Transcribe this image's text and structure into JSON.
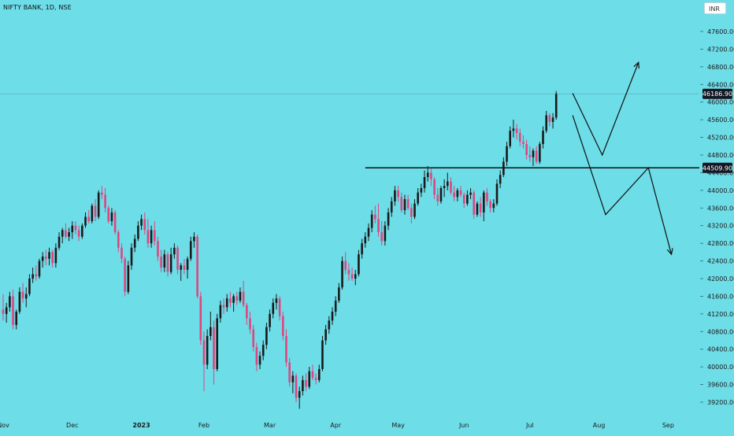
{
  "header": {
    "symbol_title": "NIFTY BANK, 1D, NSE",
    "currency": "INR"
  },
  "colors": {
    "background": "#6ddde8",
    "up": "#1a1a1a",
    "down": "#e0457f",
    "line": "#111111",
    "price_tag_bg": "#131722"
  },
  "chart_data": {
    "type": "candlestick",
    "title": "NIFTY BANK, 1D, NSE",
    "ylim": [
      39000,
      47800
    ],
    "y_ticks": [
      "39200.00",
      "39600.00",
      "40000.00",
      "40400.00",
      "40800.00",
      "41200.00",
      "41600.00",
      "42000.00",
      "42400.00",
      "42800.00",
      "43200.00",
      "43600.00",
      "44000.00",
      "44400.00",
      "44800.00",
      "45200.00",
      "45600.00",
      "46000.00",
      "46400.00",
      "46800.00",
      "47200.00",
      "47600.00"
    ],
    "y_tick_values": [
      39200,
      39600,
      40000,
      40400,
      40800,
      41200,
      41600,
      42000,
      42400,
      42800,
      43200,
      43600,
      44000,
      44400,
      44800,
      45200,
      45600,
      46000,
      46400,
      46800,
      47200,
      47600
    ],
    "x_labels": [
      "Nov",
      "Dec",
      "2023",
      "Feb",
      "Mar",
      "Apr",
      "May",
      "Jun",
      "Jul",
      "Aug",
      "Sep"
    ],
    "x_label_index": [
      0,
      21,
      42,
      61,
      81,
      101,
      120,
      140,
      160,
      181,
      202
    ],
    "grid": false,
    "price_labels": [
      {
        "text": "46186.90",
        "value": 46186.9
      },
      {
        "text": "44509.90",
        "value": 44509.9
      }
    ],
    "support_line": {
      "value": 44509.9,
      "from_index": 110,
      "to_index": 215
    },
    "projection_paths": [
      [
        [
          173,
          46200
        ],
        [
          182,
          44800
        ],
        [
          193,
          46900
        ]
      ],
      [
        [
          173,
          45700
        ],
        [
          183,
          43450
        ],
        [
          196,
          44510
        ],
        [
          203,
          42550
        ]
      ]
    ],
    "candles": [
      {
        "o": 41300,
        "h": 41650,
        "l": 41050,
        "c": 41200
      },
      {
        "o": 41200,
        "h": 41450,
        "l": 41000,
        "c": 41350
      },
      {
        "o": 41350,
        "h": 41700,
        "l": 41250,
        "c": 41600
      },
      {
        "o": 41600,
        "h": 41750,
        "l": 40850,
        "c": 40950
      },
      {
        "o": 40950,
        "h": 41300,
        "l": 40850,
        "c": 41250
      },
      {
        "o": 41250,
        "h": 41800,
        "l": 41200,
        "c": 41700
      },
      {
        "o": 41700,
        "h": 41900,
        "l": 41450,
        "c": 41550
      },
      {
        "o": 41550,
        "h": 41800,
        "l": 41350,
        "c": 41650
      },
      {
        "o": 41650,
        "h": 42100,
        "l": 41600,
        "c": 42000
      },
      {
        "o": 42000,
        "h": 42250,
        "l": 41900,
        "c": 42100
      },
      {
        "o": 42100,
        "h": 42300,
        "l": 41950,
        "c": 42050
      },
      {
        "o": 42050,
        "h": 42450,
        "l": 42000,
        "c": 42400
      },
      {
        "o": 42400,
        "h": 42600,
        "l": 42250,
        "c": 42500
      },
      {
        "o": 42500,
        "h": 42650,
        "l": 42300,
        "c": 42450
      },
      {
        "o": 42450,
        "h": 42700,
        "l": 42300,
        "c": 42600
      },
      {
        "o": 42600,
        "h": 42650,
        "l": 42250,
        "c": 42350
      },
      {
        "o": 42350,
        "h": 42800,
        "l": 42250,
        "c": 42700
      },
      {
        "o": 42700,
        "h": 43050,
        "l": 42650,
        "c": 42950
      },
      {
        "o": 42950,
        "h": 43150,
        "l": 42800,
        "c": 43100
      },
      {
        "o": 43100,
        "h": 43250,
        "l": 42900,
        "c": 42950
      },
      {
        "o": 42950,
        "h": 43150,
        "l": 42850,
        "c": 43050
      },
      {
        "o": 43050,
        "h": 43300,
        "l": 42900,
        "c": 43200
      },
      {
        "o": 43200,
        "h": 43300,
        "l": 43000,
        "c": 43100
      },
      {
        "o": 43100,
        "h": 43200,
        "l": 42850,
        "c": 42950
      },
      {
        "o": 42950,
        "h": 43250,
        "l": 42900,
        "c": 43200
      },
      {
        "o": 43200,
        "h": 43500,
        "l": 43150,
        "c": 43400
      },
      {
        "o": 43400,
        "h": 43550,
        "l": 43250,
        "c": 43300
      },
      {
        "o": 43300,
        "h": 43700,
        "l": 43250,
        "c": 43650
      },
      {
        "o": 43650,
        "h": 43800,
        "l": 43300,
        "c": 43400
      },
      {
        "o": 43400,
        "h": 44000,
        "l": 43350,
        "c": 43950
      },
      {
        "o": 43950,
        "h": 44100,
        "l": 43800,
        "c": 43900
      },
      {
        "o": 43900,
        "h": 44050,
        "l": 43500,
        "c": 43600
      },
      {
        "o": 43600,
        "h": 43650,
        "l": 43250,
        "c": 43300
      },
      {
        "o": 43300,
        "h": 43600,
        "l": 43200,
        "c": 43500
      },
      {
        "o": 43500,
        "h": 43550,
        "l": 43000,
        "c": 43050
      },
      {
        "o": 43050,
        "h": 43100,
        "l": 42600,
        "c": 42700
      },
      {
        "o": 42700,
        "h": 42800,
        "l": 42350,
        "c": 42450
      },
      {
        "o": 42450,
        "h": 42500,
        "l": 41600,
        "c": 41700
      },
      {
        "o": 41700,
        "h": 42400,
        "l": 41650,
        "c": 42300
      },
      {
        "o": 42300,
        "h": 42800,
        "l": 42200,
        "c": 42700
      },
      {
        "o": 42700,
        "h": 43000,
        "l": 42600,
        "c": 42900
      },
      {
        "o": 42900,
        "h": 43300,
        "l": 42850,
        "c": 43200
      },
      {
        "o": 43200,
        "h": 43450,
        "l": 43100,
        "c": 43350
      },
      {
        "o": 43350,
        "h": 43500,
        "l": 43000,
        "c": 43100
      },
      {
        "o": 43100,
        "h": 43350,
        "l": 42700,
        "c": 42800
      },
      {
        "o": 42800,
        "h": 43200,
        "l": 42700,
        "c": 43100
      },
      {
        "o": 43100,
        "h": 43300,
        "l": 42750,
        "c": 42850
      },
      {
        "o": 42850,
        "h": 42950,
        "l": 42400,
        "c": 42500
      },
      {
        "o": 42500,
        "h": 42650,
        "l": 42150,
        "c": 42250
      },
      {
        "o": 42250,
        "h": 42650,
        "l": 42150,
        "c": 42550
      },
      {
        "o": 42550,
        "h": 42600,
        "l": 42050,
        "c": 42150
      },
      {
        "o": 42150,
        "h": 42700,
        "l": 42100,
        "c": 42550
      },
      {
        "o": 42550,
        "h": 42800,
        "l": 42450,
        "c": 42700
      },
      {
        "o": 42700,
        "h": 42750,
        "l": 42100,
        "c": 42200
      },
      {
        "o": 42200,
        "h": 42350,
        "l": 41950,
        "c": 42300
      },
      {
        "o": 42300,
        "h": 42450,
        "l": 42100,
        "c": 42200
      },
      {
        "o": 42200,
        "h": 42500,
        "l": 42000,
        "c": 42450
      },
      {
        "o": 42450,
        "h": 42950,
        "l": 42400,
        "c": 42850
      },
      {
        "o": 42850,
        "h": 43050,
        "l": 42700,
        "c": 42950
      },
      {
        "o": 42950,
        "h": 43000,
        "l": 41550,
        "c": 41600
      },
      {
        "o": 41600,
        "h": 41700,
        "l": 40500,
        "c": 40600
      },
      {
        "o": 40600,
        "h": 40800,
        "l": 39450,
        "c": 40050
      },
      {
        "o": 40050,
        "h": 40850,
        "l": 39950,
        "c": 40700
      },
      {
        "o": 40700,
        "h": 41250,
        "l": 40600,
        "c": 40900
      },
      {
        "o": 40900,
        "h": 41050,
        "l": 39600,
        "c": 39950
      },
      {
        "o": 39950,
        "h": 41200,
        "l": 39900,
        "c": 41100
      },
      {
        "o": 41100,
        "h": 41500,
        "l": 41000,
        "c": 41400
      },
      {
        "o": 41400,
        "h": 41550,
        "l": 41200,
        "c": 41350
      },
      {
        "o": 41350,
        "h": 41650,
        "l": 41250,
        "c": 41550
      },
      {
        "o": 41550,
        "h": 41700,
        "l": 41350,
        "c": 41450
      },
      {
        "o": 41450,
        "h": 41650,
        "l": 41250,
        "c": 41600
      },
      {
        "o": 41600,
        "h": 41700,
        "l": 41400,
        "c": 41500
      },
      {
        "o": 41500,
        "h": 41800,
        "l": 41450,
        "c": 41700
      },
      {
        "o": 41700,
        "h": 41950,
        "l": 41350,
        "c": 41400
      },
      {
        "o": 41400,
        "h": 41450,
        "l": 40950,
        "c": 41100
      },
      {
        "o": 41100,
        "h": 41250,
        "l": 40750,
        "c": 40850
      },
      {
        "o": 40850,
        "h": 40950,
        "l": 40350,
        "c": 40450
      },
      {
        "o": 40450,
        "h": 40550,
        "l": 39900,
        "c": 40050
      },
      {
        "o": 40050,
        "h": 40350,
        "l": 39950,
        "c": 40250
      },
      {
        "o": 40250,
        "h": 40600,
        "l": 40150,
        "c": 40500
      },
      {
        "o": 40500,
        "h": 41000,
        "l": 40400,
        "c": 40900
      },
      {
        "o": 40900,
        "h": 41300,
        "l": 40800,
        "c": 41200
      },
      {
        "o": 41200,
        "h": 41550,
        "l": 41100,
        "c": 41450
      },
      {
        "o": 41450,
        "h": 41650,
        "l": 41300,
        "c": 41550
      },
      {
        "o": 41550,
        "h": 41600,
        "l": 41050,
        "c": 41150
      },
      {
        "o": 41150,
        "h": 41250,
        "l": 40600,
        "c": 40700
      },
      {
        "o": 40700,
        "h": 40850,
        "l": 40000,
        "c": 40100
      },
      {
        "o": 40100,
        "h": 40200,
        "l": 39550,
        "c": 39650
      },
      {
        "o": 39650,
        "h": 39900,
        "l": 39400,
        "c": 39800
      },
      {
        "o": 39800,
        "h": 39850,
        "l": 39200,
        "c": 39300
      },
      {
        "o": 39300,
        "h": 39550,
        "l": 39050,
        "c": 39450
      },
      {
        "o": 39450,
        "h": 39800,
        "l": 39350,
        "c": 39700
      },
      {
        "o": 39700,
        "h": 39850,
        "l": 39450,
        "c": 39550
      },
      {
        "o": 39550,
        "h": 40000,
        "l": 39500,
        "c": 39900
      },
      {
        "o": 39900,
        "h": 40050,
        "l": 39700,
        "c": 39750
      },
      {
        "o": 39750,
        "h": 39850,
        "l": 39600,
        "c": 39700
      },
      {
        "o": 39700,
        "h": 40050,
        "l": 39650,
        "c": 39950
      },
      {
        "o": 39950,
        "h": 40700,
        "l": 39900,
        "c": 40600
      },
      {
        "o": 40600,
        "h": 40950,
        "l": 40500,
        "c": 40850
      },
      {
        "o": 40850,
        "h": 41150,
        "l": 40750,
        "c": 41050
      },
      {
        "o": 41050,
        "h": 41350,
        "l": 40950,
        "c": 41250
      },
      {
        "o": 41250,
        "h": 41600,
        "l": 41150,
        "c": 41500
      },
      {
        "o": 41500,
        "h": 41900,
        "l": 41450,
        "c": 41800
      },
      {
        "o": 41800,
        "h": 42500,
        "l": 41750,
        "c": 42400
      },
      {
        "o": 42400,
        "h": 42600,
        "l": 42100,
        "c": 42200
      },
      {
        "o": 42200,
        "h": 42350,
        "l": 41950,
        "c": 42100
      },
      {
        "o": 42100,
        "h": 42250,
        "l": 41950,
        "c": 42000
      },
      {
        "o": 42000,
        "h": 42200,
        "l": 41850,
        "c": 42100
      },
      {
        "o": 42100,
        "h": 42650,
        "l": 42050,
        "c": 42550
      },
      {
        "o": 42550,
        "h": 42900,
        "l": 42450,
        "c": 42800
      },
      {
        "o": 42800,
        "h": 43050,
        "l": 42700,
        "c": 42950
      },
      {
        "o": 42950,
        "h": 43250,
        "l": 42850,
        "c": 43150
      },
      {
        "o": 43150,
        "h": 43550,
        "l": 43050,
        "c": 43450
      },
      {
        "o": 43450,
        "h": 43650,
        "l": 43250,
        "c": 43350
      },
      {
        "o": 43350,
        "h": 43700,
        "l": 42950,
        "c": 43050
      },
      {
        "o": 43050,
        "h": 43300,
        "l": 42750,
        "c": 42850
      },
      {
        "o": 42850,
        "h": 43300,
        "l": 42750,
        "c": 43200
      },
      {
        "o": 43200,
        "h": 43600,
        "l": 43100,
        "c": 43500
      },
      {
        "o": 43500,
        "h": 43850,
        "l": 43400,
        "c": 43750
      },
      {
        "o": 43750,
        "h": 44100,
        "l": 43650,
        "c": 44000
      },
      {
        "o": 44000,
        "h": 44100,
        "l": 43750,
        "c": 43850
      },
      {
        "o": 43850,
        "h": 43950,
        "l": 43500,
        "c": 43550
      },
      {
        "o": 43550,
        "h": 43900,
        "l": 43450,
        "c": 43800
      },
      {
        "o": 43800,
        "h": 43900,
        "l": 43550,
        "c": 43600
      },
      {
        "o": 43600,
        "h": 43700,
        "l": 43250,
        "c": 43400
      },
      {
        "o": 43400,
        "h": 43800,
        "l": 43350,
        "c": 43700
      },
      {
        "o": 43700,
        "h": 44050,
        "l": 43650,
        "c": 43950
      },
      {
        "o": 43950,
        "h": 44150,
        "l": 43850,
        "c": 44050
      },
      {
        "o": 44050,
        "h": 44450,
        "l": 43950,
        "c": 44300
      },
      {
        "o": 44300,
        "h": 44550,
        "l": 44200,
        "c": 44400
      },
      {
        "o": 44400,
        "h": 44500,
        "l": 44100,
        "c": 44250
      },
      {
        "o": 44250,
        "h": 44300,
        "l": 43800,
        "c": 43900
      },
      {
        "o": 43900,
        "h": 44050,
        "l": 43650,
        "c": 43750
      },
      {
        "o": 43750,
        "h": 44100,
        "l": 43700,
        "c": 44050
      },
      {
        "o": 44050,
        "h": 44250,
        "l": 43850,
        "c": 44100
      },
      {
        "o": 44100,
        "h": 44400,
        "l": 44000,
        "c": 44200
      },
      {
        "o": 44200,
        "h": 44300,
        "l": 43900,
        "c": 43950
      },
      {
        "o": 43950,
        "h": 44100,
        "l": 43750,
        "c": 43850
      },
      {
        "o": 43850,
        "h": 44050,
        "l": 43750,
        "c": 44000
      },
      {
        "o": 44000,
        "h": 44100,
        "l": 43850,
        "c": 43900
      },
      {
        "o": 43900,
        "h": 43950,
        "l": 43600,
        "c": 43700
      },
      {
        "o": 43700,
        "h": 44000,
        "l": 43650,
        "c": 43900
      },
      {
        "o": 43900,
        "h": 44050,
        "l": 43800,
        "c": 43950
      },
      {
        "o": 43950,
        "h": 44000,
        "l": 43350,
        "c": 43450
      },
      {
        "o": 43450,
        "h": 43750,
        "l": 43400,
        "c": 43700
      },
      {
        "o": 43700,
        "h": 43850,
        "l": 43400,
        "c": 43500
      },
      {
        "o": 43500,
        "h": 44000,
        "l": 43300,
        "c": 43950
      },
      {
        "o": 43950,
        "h": 44050,
        "l": 43650,
        "c": 43750
      },
      {
        "o": 43750,
        "h": 43800,
        "l": 43500,
        "c": 43600
      },
      {
        "o": 43600,
        "h": 43800,
        "l": 43500,
        "c": 43700
      },
      {
        "o": 43700,
        "h": 44250,
        "l": 43650,
        "c": 44150
      },
      {
        "o": 44150,
        "h": 44450,
        "l": 44050,
        "c": 44350
      },
      {
        "o": 44350,
        "h": 44750,
        "l": 44300,
        "c": 44650
      },
      {
        "o": 44650,
        "h": 45100,
        "l": 44550,
        "c": 45000
      },
      {
        "o": 45000,
        "h": 45450,
        "l": 44950,
        "c": 45350
      },
      {
        "o": 45350,
        "h": 45600,
        "l": 45200,
        "c": 45400
      },
      {
        "o": 45400,
        "h": 45500,
        "l": 45150,
        "c": 45300
      },
      {
        "o": 45300,
        "h": 45400,
        "l": 45000,
        "c": 45100
      },
      {
        "o": 45100,
        "h": 45250,
        "l": 44950,
        "c": 45050
      },
      {
        "o": 45050,
        "h": 45150,
        "l": 44700,
        "c": 44800
      },
      {
        "o": 44800,
        "h": 45000,
        "l": 44650,
        "c": 44750
      },
      {
        "o": 44750,
        "h": 44950,
        "l": 44550,
        "c": 44900
      },
      {
        "o": 44900,
        "h": 45000,
        "l": 44600,
        "c": 44650
      },
      {
        "o": 44650,
        "h": 45100,
        "l": 44600,
        "c": 45050
      },
      {
        "o": 45050,
        "h": 45450,
        "l": 44950,
        "c": 45350
      },
      {
        "o": 45350,
        "h": 45800,
        "l": 45300,
        "c": 45700
      },
      {
        "o": 45700,
        "h": 45750,
        "l": 45450,
        "c": 45550
      },
      {
        "o": 45550,
        "h": 45750,
        "l": 45400,
        "c": 45650
      },
      {
        "o": 45650,
        "h": 46250,
        "l": 45600,
        "c": 46186.9
      }
    ]
  }
}
